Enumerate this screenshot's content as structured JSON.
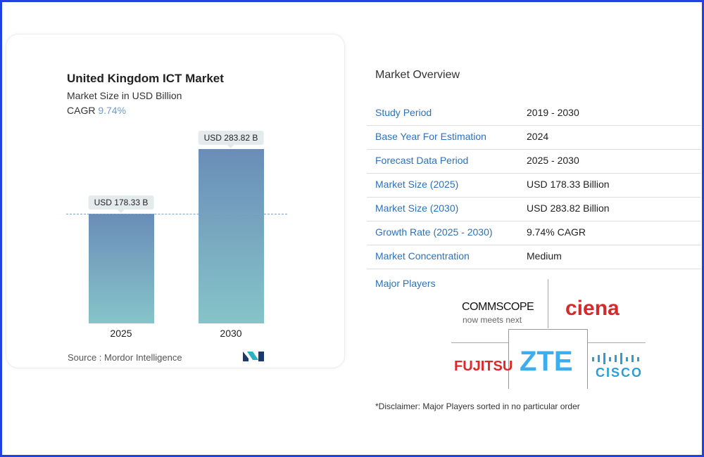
{
  "chart_data": {
    "type": "bar",
    "title": "United Kingdom ICT Market",
    "subtitle": "Market Size in USD Billion",
    "cagr_label": "CAGR",
    "cagr_value": "9.74%",
    "categories": [
      "2025",
      "2030"
    ],
    "values": [
      178.33,
      283.82
    ],
    "data_labels": [
      "USD 178.33 B",
      "USD 283.82 B"
    ],
    "ylim": [
      0,
      283.82
    ],
    "colors": {
      "bar_top": "#6a8db8",
      "bar_bottom": "#86c4c9",
      "cagr": "#6f9ccc"
    },
    "source": "Source :  Mordor Intelligence"
  },
  "overview": {
    "title": "Market Overview",
    "rows": [
      {
        "label": "Study Period",
        "value": "2019 - 2030"
      },
      {
        "label": "Base Year For Estimation",
        "value": "2024"
      },
      {
        "label": "Forecast Data Period",
        "value": "2025 - 2030"
      },
      {
        "label": "Market Size (2025)",
        "value": "USD 178.33 Billion"
      },
      {
        "label": "Market Size (2030)",
        "value": "USD 283.82 Billion"
      },
      {
        "label": "Growth Rate (2025 - 2030)",
        "value": "9.74% CAGR"
      },
      {
        "label": "Market Concentration",
        "value": "Medium"
      }
    ],
    "major_players_label": "Major Players",
    "players": [
      "COMMSCOPE",
      "ciena",
      "FUJITSU",
      "ZTE",
      "CISCO"
    ],
    "commscope_tagline": "now meets next",
    "disclaimer": "*Disclaimer: Major Players sorted in no particular order"
  }
}
